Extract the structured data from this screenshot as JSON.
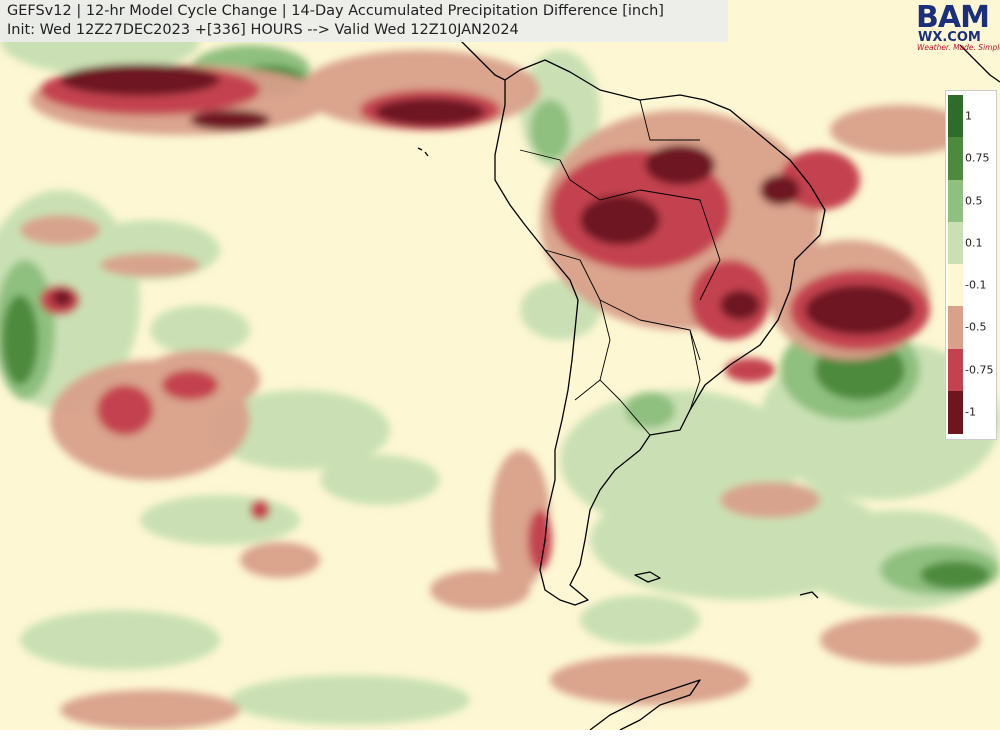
{
  "header": {
    "line1": "GEFSv12 | 12-hr Model Cycle Change | 14-Day Accumulated Precipitation Difference [inch]",
    "line2": "Init: Wed 12Z27DEC2023 +[336] HOURS --> Valid Wed 12Z10JAN2024"
  },
  "logo": {
    "text_bam": "BAM",
    "text_wx": "WX.COM",
    "tagline": "Weather. Made. Simple."
  },
  "legend": {
    "labels": [
      "1",
      "0.75",
      "0.5",
      "0.1",
      "-0.1",
      "-0.5",
      "-0.75",
      "-1"
    ],
    "colors": [
      "#2f6b2a",
      "#4d8a3e",
      "#8fc07f",
      "#c8e0b3",
      "#fdf7d3",
      "#d9a08a",
      "#c4424f",
      "#6e1520"
    ]
  },
  "colors": {
    "background": "#fdf7d3",
    "coast": "#000000"
  }
}
